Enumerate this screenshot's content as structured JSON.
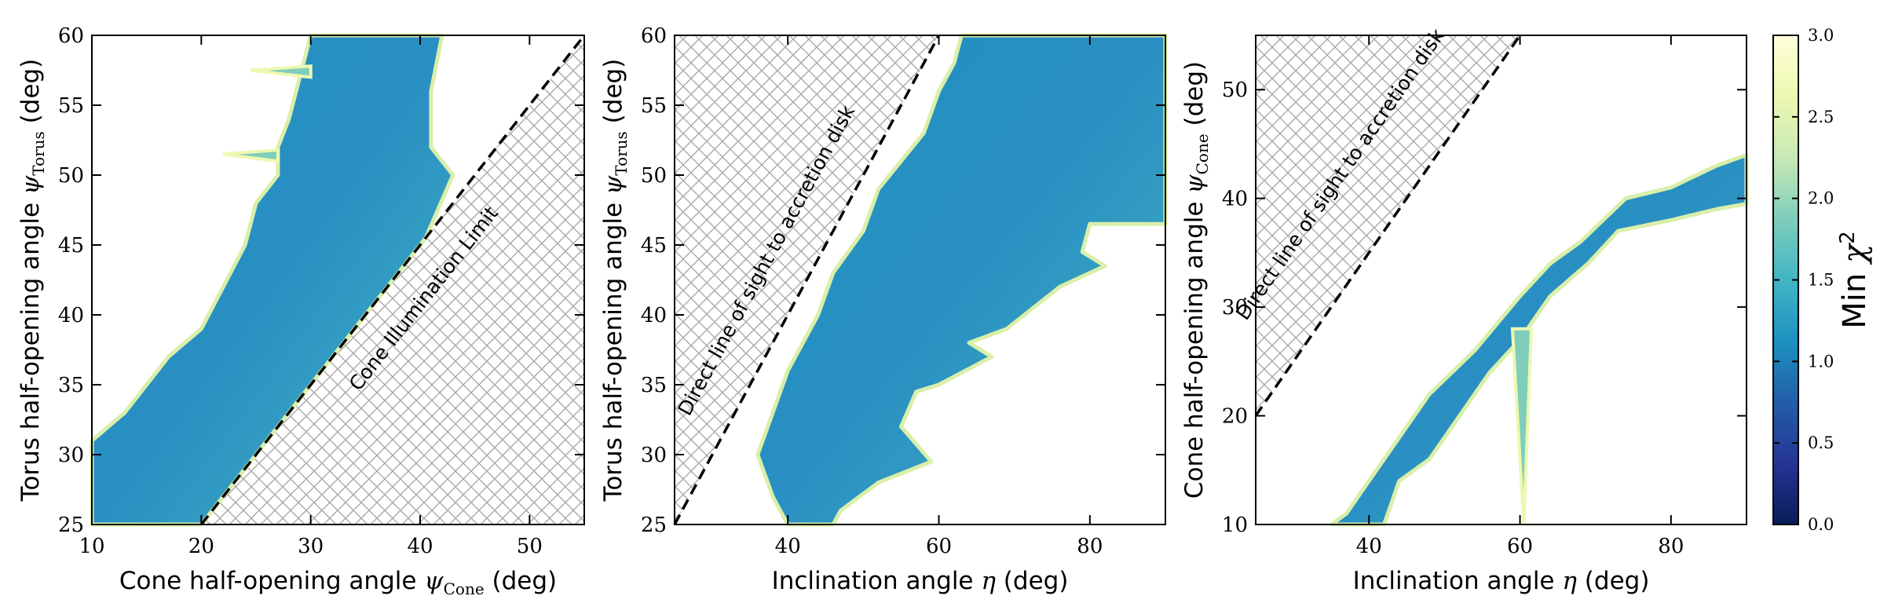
{
  "colors": {
    "colormap": [
      "#081d58",
      "#253494",
      "#225ea8",
      "#1d91c0",
      "#41b6c4",
      "#7fcdbb",
      "#c7e9b4",
      "#edf8b1",
      "#ffffd9"
    ],
    "hatch": "#a9a9a9",
    "boundary_line": "#000000"
  },
  "chart_data": [
    {
      "type": "heatmap",
      "xlabel": "Cone half-opening angle ψ_Cone (deg)",
      "ylabel": "Torus half-opening angle ψ_Torus (deg)",
      "xlim": [
        10,
        55
      ],
      "ylim": [
        25,
        60
      ],
      "xticks": [
        10,
        20,
        30,
        40,
        50
      ],
      "yticks": [
        25,
        30,
        35,
        40,
        45,
        50,
        55,
        60
      ],
      "hatched_region": "below the line ψ_Torus = ψ_Cone + 5",
      "boundary_line": {
        "x": [
          20,
          55
        ],
        "y": [
          25,
          60
        ],
        "style": "dashed"
      },
      "annotation": "Cone Illumination Limit",
      "filled_region": {
        "left_edge": [
          [
            10,
            25
          ],
          [
            10,
            31
          ],
          [
            13,
            33
          ],
          [
            15,
            35
          ],
          [
            17,
            37
          ],
          [
            20,
            39
          ],
          [
            22,
            42
          ],
          [
            24,
            45
          ],
          [
            25,
            48
          ],
          [
            27,
            50
          ],
          [
            27,
            52
          ],
          [
            28,
            54
          ],
          [
            29,
            57
          ],
          [
            30,
            60
          ]
        ],
        "right_edge": [
          [
            42,
            60
          ],
          [
            41,
            56
          ],
          [
            41,
            52
          ],
          [
            43,
            50
          ],
          [
            40.5,
            45.5
          ],
          [
            20,
            25
          ]
        ],
        "min_chi2_range": [
          0.9,
          1.8
        ]
      },
      "feature_spikes": [
        [
          [
            24.5,
            57.5
          ],
          [
            30,
            57.8
          ],
          [
            30,
            57
          ]
        ],
        [
          [
            22,
            51.5
          ],
          [
            27,
            51.8
          ],
          [
            27,
            51
          ]
        ]
      ]
    },
    {
      "type": "heatmap",
      "xlabel": "Inclination angle η (deg)",
      "ylabel": "Torus half-opening angle ψ_Torus (deg)",
      "xlim": [
        25,
        90
      ],
      "ylim": [
        25,
        60
      ],
      "xticks": [
        40,
        60,
        80
      ],
      "yticks": [
        25,
        30,
        35,
        40,
        45,
        50,
        55,
        60
      ],
      "hatched_region": "above the line ψ_Torus = η",
      "boundary_line": {
        "x": [
          25,
          60
        ],
        "y": [
          25,
          60
        ],
        "style": "dashed"
      },
      "annotation": "Direct line of sight to accretion disk",
      "filled_region": {
        "left_edge": [
          [
            40,
            25
          ],
          [
            38,
            27
          ],
          [
            36,
            30
          ],
          [
            38,
            33
          ],
          [
            40,
            36
          ],
          [
            44,
            40
          ],
          [
            46,
            43
          ],
          [
            50,
            46
          ],
          [
            52,
            49
          ],
          [
            55,
            51
          ],
          [
            58,
            53
          ],
          [
            60,
            56
          ],
          [
            62,
            58
          ],
          [
            63,
            60
          ]
        ],
        "right_edge": [
          [
            90,
            60
          ],
          [
            90,
            46.5
          ],
          [
            80,
            46.5
          ],
          [
            79,
            44.5
          ],
          [
            82,
            43.5
          ],
          [
            76,
            42
          ],
          [
            69,
            39
          ],
          [
            64,
            38
          ],
          [
            67,
            37
          ],
          [
            60,
            35
          ],
          [
            57,
            34.5
          ],
          [
            55,
            32
          ],
          [
            59,
            29.5
          ],
          [
            52,
            28
          ],
          [
            47,
            26
          ],
          [
            46,
            25
          ]
        ],
        "min_chi2_range": [
          0.9,
          1.8
        ]
      }
    },
    {
      "type": "heatmap",
      "xlabel": "Inclination angle η (deg)",
      "ylabel": "Cone half-opening angle ψ_Cone (deg)",
      "xlim": [
        25,
        90
      ],
      "ylim": [
        10,
        55
      ],
      "xticks": [
        40,
        60,
        80
      ],
      "yticks": [
        10,
        20,
        30,
        40,
        50
      ],
      "hatched_region": "above the line ψ_Cone = η − 5",
      "boundary_line": {
        "x": [
          25,
          60
        ],
        "y": [
          20,
          55
        ],
        "style": "dashed"
      },
      "annotation": "Direct line of sight to accretion disk",
      "filled_region": {
        "lower_edge": [
          [
            38,
            10
          ],
          [
            42,
            10
          ],
          [
            44,
            14
          ],
          [
            48,
            16
          ],
          [
            52,
            20
          ],
          [
            56,
            24
          ],
          [
            60,
            27
          ],
          [
            64,
            31
          ],
          [
            69,
            34
          ],
          [
            73,
            37
          ],
          [
            80,
            38
          ],
          [
            86,
            39
          ],
          [
            90,
            39.5
          ]
        ],
        "upper_edge": [
          [
            90,
            44
          ],
          [
            86,
            43
          ],
          [
            80,
            41
          ],
          [
            74,
            40
          ],
          [
            68,
            36
          ],
          [
            64,
            34
          ],
          [
            60,
            31
          ],
          [
            54,
            26
          ],
          [
            48,
            22
          ],
          [
            44,
            18
          ],
          [
            40,
            14
          ],
          [
            37,
            11
          ],
          [
            35,
            10
          ]
        ],
        "min_chi2_range": [
          0.9,
          2.0
        ]
      },
      "feature_spikes": [
        [
          [
            59,
            28
          ],
          [
            60.5,
            10
          ],
          [
            61.5,
            28
          ]
        ]
      ]
    }
  ],
  "colorbar": {
    "label": "Min χ²",
    "ticks": [
      "0.0",
      "0.5",
      "1.0",
      "1.5",
      "2.0",
      "2.5",
      "3.0"
    ],
    "tick_values": [
      0.0,
      0.5,
      1.0,
      1.5,
      2.0,
      2.5,
      3.0
    ],
    "range": [
      0.0,
      3.0
    ]
  }
}
